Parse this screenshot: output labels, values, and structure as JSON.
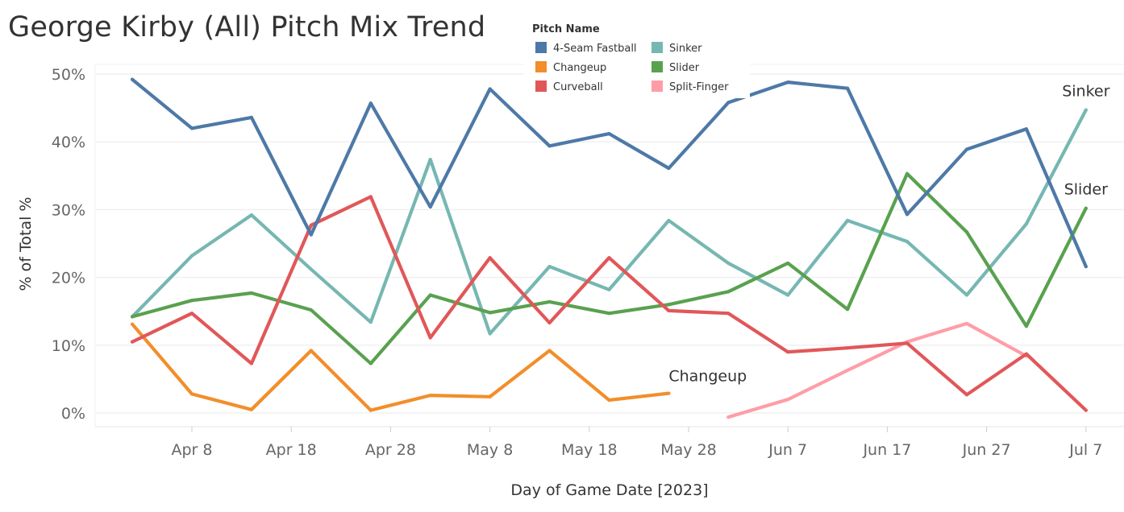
{
  "title": "George Kirby (All) Pitch Mix Trend",
  "chart_data": {
    "type": "line",
    "title": "George Kirby (All) Pitch Mix Trend",
    "xlabel": "Day of Game Date [2023]",
    "ylabel": "% of Total %",
    "x_axis_start_date": "2023-03-30",
    "x_ticks": [
      {
        "label": "Apr 8",
        "day": 9
      },
      {
        "label": "Apr 18",
        "day": 19
      },
      {
        "label": "Apr 28",
        "day": 29
      },
      {
        "label": "May 8",
        "day": 39
      },
      {
        "label": "May 18",
        "day": 49
      },
      {
        "label": "May 28",
        "day": 59
      },
      {
        "label": "Jun 7",
        "day": 69
      },
      {
        "label": "Jun 17",
        "day": 79
      },
      {
        "label": "Jun 27",
        "day": 89
      },
      {
        "label": "Jul 7",
        "day": 99
      }
    ],
    "xlim": [
      2,
      102
    ],
    "ylim": [
      -1.5,
      51.5
    ],
    "y_ticks": [
      {
        "label": "0%",
        "value": 0
      },
      {
        "label": "10%",
        "value": 10
      },
      {
        "label": "20%",
        "value": 20
      },
      {
        "label": "30%",
        "value": 30
      },
      {
        "label": "40%",
        "value": 40
      },
      {
        "label": "50%",
        "value": 50
      }
    ],
    "legend": {
      "title": "Pitch Name",
      "placement": "top-center",
      "items": [
        "4-Seam Fastball",
        "Sinker",
        "Changeup",
        "Slider",
        "Curveball",
        "Split-Finger"
      ]
    },
    "series": [
      {
        "name": "4-Seam Fastball",
        "color": "#4e79a7",
        "x": [
          3,
          9,
          15,
          21,
          27,
          33,
          39,
          45,
          51,
          57,
          63,
          69,
          75,
          81,
          87,
          93,
          99
        ],
        "values": [
          49.2,
          42.0,
          43.6,
          26.3,
          45.7,
          30.4,
          47.8,
          39.4,
          41.2,
          36.1,
          45.8,
          48.8,
          47.9,
          29.3,
          38.9,
          41.9,
          21.6
        ]
      },
      {
        "name": "Sinker",
        "color": "#76b7b2",
        "x": [
          3,
          9,
          15,
          21,
          27,
          33,
          39,
          45,
          51,
          57,
          63,
          69,
          75,
          81,
          87,
          93,
          99
        ],
        "values": [
          14.2,
          23.2,
          29.2,
          21.2,
          13.4,
          37.4,
          11.7,
          21.6,
          18.2,
          28.4,
          22.1,
          17.4,
          28.4,
          25.3,
          17.4,
          27.9,
          44.7
        ]
      },
      {
        "name": "Slider",
        "color": "#59a14f",
        "x": [
          3,
          9,
          15,
          21,
          27,
          33,
          39,
          45,
          51,
          57,
          63,
          69,
          75,
          81,
          87,
          93,
          99
        ],
        "values": [
          14.2,
          16.6,
          17.7,
          15.2,
          7.3,
          17.4,
          14.8,
          16.4,
          14.7,
          16.0,
          17.9,
          22.1,
          15.3,
          35.3,
          26.7,
          12.8,
          30.2
        ]
      },
      {
        "name": "Curveball",
        "color": "#e15759",
        "x": [
          3,
          9,
          15,
          21,
          27,
          33,
          39,
          45,
          51,
          57,
          63,
          69,
          75,
          81,
          87,
          93,
          99
        ],
        "values": [
          10.5,
          14.7,
          7.3,
          27.7,
          31.9,
          11.1,
          22.9,
          13.3,
          22.9,
          15.1,
          14.7,
          9.0,
          9.6,
          10.3,
          2.7,
          8.7,
          0.4
        ]
      },
      {
        "name": "Changeup",
        "color": "#f28e2b",
        "x": [
          3,
          9,
          15,
          21,
          27,
          33,
          39,
          45,
          51,
          57
        ],
        "values": [
          13.1,
          2.8,
          0.5,
          9.2,
          0.4,
          2.6,
          2.4,
          9.2,
          1.9,
          2.9
        ]
      },
      {
        "name": "Split-Finger",
        "color": "#ff9da7",
        "x": [
          63,
          69,
          75,
          81,
          87,
          93
        ],
        "values": [
          -0.6,
          2.0,
          6.3,
          10.5,
          13.2,
          8.4
        ]
      }
    ],
    "end_labels": [
      {
        "text": "Sinker",
        "series": "Sinker"
      },
      {
        "text": "Slider",
        "series": "Slider"
      },
      {
        "text": "Changeup",
        "series": "Changeup"
      }
    ]
  }
}
